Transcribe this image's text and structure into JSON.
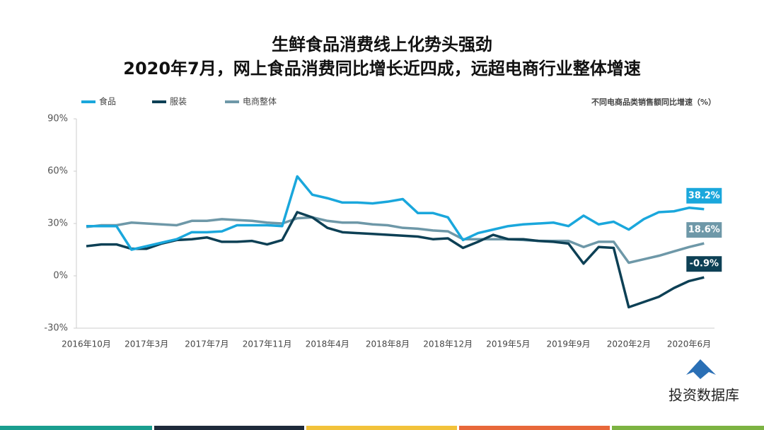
{
  "chart_data": {
    "type": "line",
    "title": "生鲜食品消费线上化势头强劲",
    "subtitle": "2020年7月，网上食品消费同比增长近四成，远超电商行业整体增速",
    "note": "不同电商品类销售额同比增速（%）",
    "watermark": "投资数据库",
    "categories": [
      "2016年10月",
      null,
      null,
      null,
      "2017年3月",
      null,
      null,
      null,
      "2017年7月",
      null,
      null,
      null,
      "2017年11月",
      null,
      null,
      null,
      "2018年4月",
      null,
      null,
      null,
      "2018年8月",
      null,
      null,
      null,
      "2018年12月",
      null,
      null,
      null,
      "2019年5月",
      null,
      null,
      null,
      "2019年9月",
      null,
      null,
      null,
      "2020年2月",
      null,
      null,
      null,
      "2020年6月",
      null
    ],
    "ylim": [
      -30,
      90
    ],
    "yticks": [
      {
        "value": -30,
        "label": "-30%"
      },
      {
        "value": 0,
        "label": "0%"
      },
      {
        "value": 30,
        "label": "30%"
      },
      {
        "value": 60,
        "label": "60%"
      },
      {
        "value": 90,
        "label": "90%"
      }
    ],
    "legend": "top-left",
    "series": [
      {
        "name": "食品",
        "color": "#1aa7dc",
        "values": [
          28.5,
          28.5,
          28.5,
          15,
          17,
          19,
          21,
          25,
          25,
          25.5,
          29,
          29,
          29,
          28.5,
          57,
          46.5,
          44.5,
          42,
          42,
          41.5,
          42.5,
          44,
          36,
          36,
          33.5,
          20.5,
          24.5,
          26.5,
          28.5,
          29.5,
          30,
          30.5,
          28.5,
          34.5,
          29.5,
          31,
          26.5,
          32.5,
          36.5,
          37,
          39,
          38.2
        ],
        "value_labels": [
          null,
          null,
          null,
          null,
          null,
          null,
          null,
          null,
          null,
          null,
          null,
          null,
          null,
          null,
          null,
          null,
          null,
          null,
          null,
          null,
          null,
          null,
          null,
          null,
          null,
          null,
          null,
          null,
          null,
          null,
          null,
          null,
          null,
          null,
          null,
          null,
          null,
          null,
          null,
          null,
          null,
          "38.2%"
        ]
      },
      {
        "name": "服装",
        "color": "#0d4055",
        "values": [
          17,
          18,
          18,
          15.5,
          15.5,
          18.5,
          20.5,
          21,
          22,
          19.5,
          19.5,
          20,
          18,
          20.5,
          36.5,
          33.5,
          27.5,
          25,
          24.5,
          24,
          23.5,
          23,
          22.5,
          21,
          21.5,
          16,
          19.5,
          23.5,
          21,
          21,
          20,
          19.5,
          18.5,
          7,
          16.5,
          16,
          -18,
          -15,
          -12,
          -7,
          -3,
          -0.9
        ],
        "value_labels": [
          null,
          null,
          null,
          null,
          null,
          null,
          null,
          null,
          null,
          null,
          null,
          null,
          null,
          null,
          null,
          null,
          null,
          null,
          null,
          null,
          null,
          null,
          null,
          null,
          null,
          null,
          null,
          null,
          null,
          null,
          null,
          null,
          null,
          null,
          null,
          null,
          null,
          null,
          null,
          null,
          null,
          "-0.9%"
        ]
      },
      {
        "name": "电商整体",
        "color": "#6e98a8",
        "values": [
          28,
          29,
          29,
          30.5,
          30,
          29.5,
          29,
          31.5,
          31.5,
          32.5,
          32,
          31.5,
          30.5,
          30,
          33,
          33.5,
          31.5,
          30.5,
          30.5,
          29.5,
          29,
          27.5,
          27,
          26,
          25.5,
          21,
          21,
          21,
          21,
          20.5,
          20,
          20,
          20,
          16.5,
          19.5,
          19.5,
          7.5,
          9.5,
          11.5,
          14,
          16.5,
          18.6
        ],
        "value_labels": [
          null,
          null,
          null,
          null,
          null,
          null,
          null,
          null,
          null,
          null,
          null,
          null,
          null,
          null,
          null,
          null,
          null,
          null,
          null,
          null,
          null,
          null,
          null,
          null,
          null,
          null,
          null,
          null,
          null,
          null,
          null,
          null,
          null,
          null,
          null,
          null,
          null,
          null,
          null,
          null,
          null,
          "18.6%"
        ]
      }
    ]
  }
}
